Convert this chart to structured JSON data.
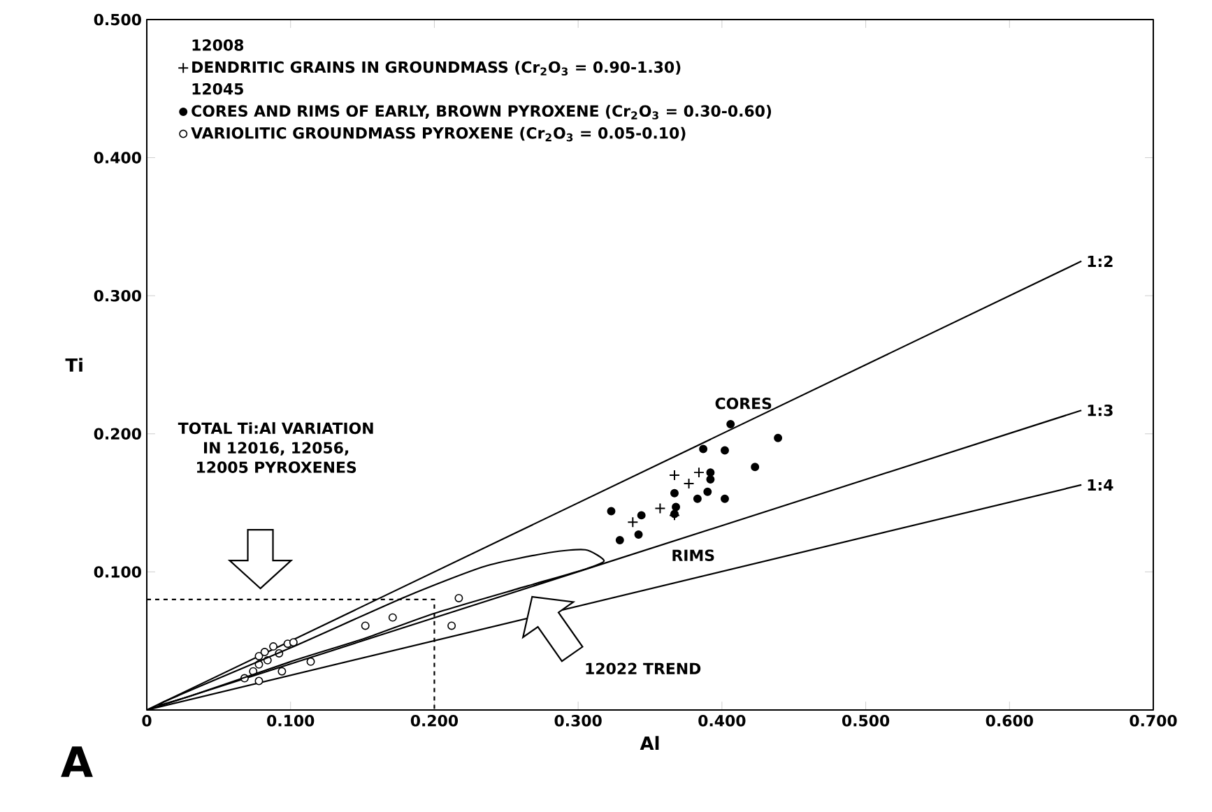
{
  "chart_data": {
    "type": "scatter",
    "xlabel": "Al",
    "ylabel": "Ti",
    "xlim": [
      0,
      0.7
    ],
    "ylim": [
      0,
      0.5
    ],
    "xticks": [
      0,
      {
        "value": 0.1,
        "label": "0.100"
      },
      {
        "value": 0.2,
        "label": "0.200"
      },
      {
        "value": 0.3,
        "label": "0.300"
      },
      {
        "value": 0.4,
        "label": "0.400"
      },
      {
        "value": 0.5,
        "label": "0.500"
      },
      {
        "value": 0.6,
        "label": "0.600"
      },
      {
        "value": 0.7,
        "label": "0.700"
      }
    ],
    "yticks": [
      {
        "value": 0.1,
        "label": "0.100"
      },
      {
        "value": 0.2,
        "label": "0.200"
      },
      {
        "value": 0.3,
        "label": "0.300"
      },
      {
        "value": 0.4,
        "label": "0.400"
      },
      {
        "value": 0.5,
        "label": "0.500"
      }
    ],
    "legend": "top left",
    "series": [
      {
        "name": "DENDRITIC GRAINS IN GROUNDMASS (Cr$_{2}$O$_{3}$ = 0.90-1.30)",
        "marker": "cross",
        "color": "#000000",
        "x": [
          0.338,
          0.367,
          0.377,
          0.384,
          0.357,
          0.367
        ],
        "values": [
          0.136,
          0.17,
          0.164,
          0.172,
          0.146,
          0.141
        ]
      },
      {
        "name": "CORES AND RIMS OF EARLY, BROWN PYROXENE (Cr$_{2}$O$_{3}$ = 0.30-0.60)",
        "marker": "circle",
        "color": "#000000",
        "x": [
          0.323,
          0.329,
          0.342,
          0.344,
          0.387,
          0.406,
          0.402,
          0.439,
          0.423,
          0.392,
          0.392,
          0.39,
          0.383,
          0.402,
          0.367,
          0.368,
          0.367
        ],
        "values": [
          0.144,
          0.123,
          0.127,
          0.141,
          0.189,
          0.207,
          0.188,
          0.197,
          0.176,
          0.172,
          0.167,
          0.158,
          0.153,
          0.153,
          0.157,
          0.147,
          0.142
        ]
      },
      {
        "name": "VARIOLITIC GROUNDMASS PYROXENE (Cr$_{2}$O$_{3}$ = 0.05-0.10)",
        "marker": "circle",
        "color": "#ffffff",
        "x": [
          0.068,
          0.074,
          0.078,
          0.078,
          0.082,
          0.084,
          0.088,
          0.092,
          0.094,
          0.098,
          0.102,
          0.078,
          0.114,
          0.152,
          0.171,
          0.212,
          0.217
        ],
        "values": [
          0.023,
          0.028,
          0.021,
          0.039,
          0.042,
          0.036,
          0.046,
          0.041,
          0.028,
          0.048,
          0.049,
          0.033,
          0.035,
          0.061,
          0.067,
          0.061,
          0.081
        ]
      },
      {
        "name": "1:2",
        "type": "line",
        "color": "#000000",
        "x": [
          0,
          0.65
        ],
        "values": [
          0,
          0.325
        ]
      },
      {
        "name": "1:3",
        "type": "line",
        "color": "#000000",
        "x": [
          0,
          0.65
        ],
        "values": [
          0,
          0.217
        ]
      },
      {
        "name": "1:4",
        "type": "line",
        "color": "#000000",
        "x": [
          0,
          0.65
        ],
        "values": [
          0,
          0.163
        ]
      },
      {
        "type": "line",
        "color": "#000000",
        "line_style": "dashed",
        "x": [
          0,
          0.2,
          0.2
        ],
        "values": [
          0.08,
          0.08,
          0
        ]
      }
    ],
    "annotations": [
      "12008",
      "12045",
      "A",
      "CORES",
      "RIMS",
      "TOTAL Ti:Al VARIATION IN 12016, 12056, 12005 PYROXENES",
      "12022 TREND"
    ]
  }
}
